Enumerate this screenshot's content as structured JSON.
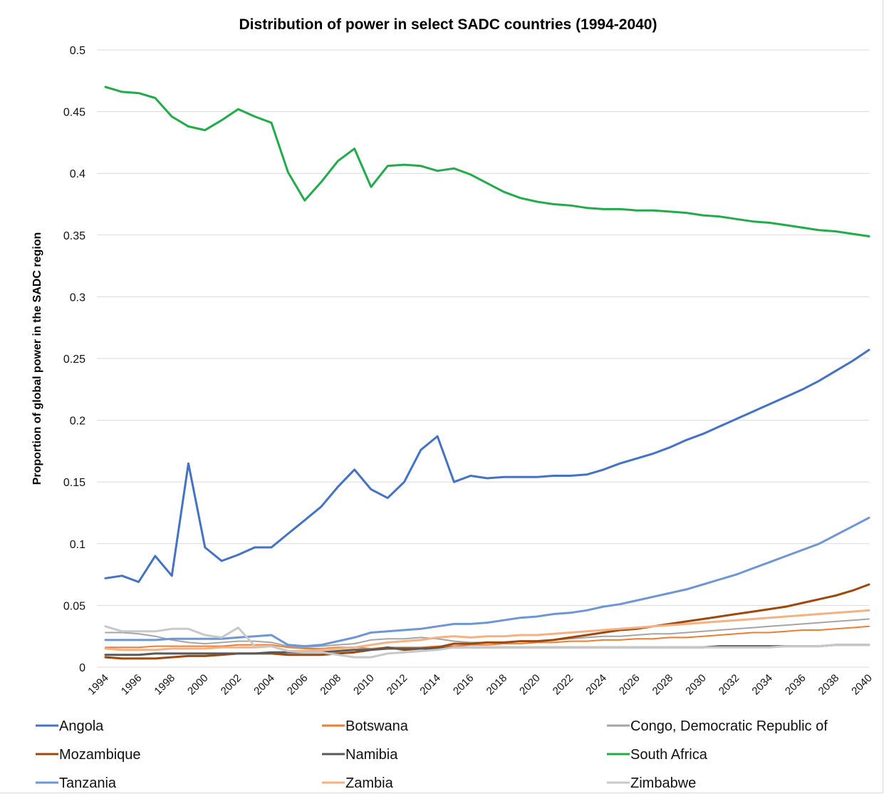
{
  "chart_data": {
    "type": "line",
    "title": "Distribution of power in select SADC countries (1994-2040)",
    "xlabel": "",
    "ylabel": "Proportion of global power in the SADC region",
    "ylim": [
      0,
      0.5
    ],
    "yticks": [
      "0",
      "0.05",
      "0.1",
      "0.15",
      "0.2",
      "0.25",
      "0.3",
      "0.35",
      "0.4",
      "0.45",
      "0.5"
    ],
    "xticks": [
      "1994",
      "1996",
      "1998",
      "2000",
      "2002",
      "2004",
      "2006",
      "2008",
      "2010",
      "2012",
      "2014",
      "2016",
      "2018",
      "2020",
      "2022",
      "2024",
      "2026",
      "2028",
      "2030",
      "2032",
      "2034",
      "2036",
      "2038",
      "2040"
    ],
    "grid": true,
    "legend_position": "bottom",
    "x": [
      1994,
      1995,
      1996,
      1997,
      1998,
      1999,
      2000,
      2001,
      2002,
      2003,
      2004,
      2005,
      2006,
      2007,
      2008,
      2009,
      2010,
      2011,
      2012,
      2013,
      2014,
      2015,
      2016,
      2017,
      2018,
      2019,
      2020,
      2021,
      2022,
      2023,
      2024,
      2025,
      2026,
      2027,
      2028,
      2029,
      2030,
      2031,
      2032,
      2033,
      2034,
      2035,
      2036,
      2037,
      2038,
      2039,
      2040
    ],
    "series": [
      {
        "name": "Angola",
        "color": "#4472c4",
        "width": 3,
        "values": [
          0.072,
          0.074,
          0.069,
          0.09,
          0.074,
          0.165,
          0.097,
          0.086,
          0.091,
          0.097,
          0.097,
          0.108,
          0.119,
          0.13,
          0.146,
          0.16,
          0.144,
          0.137,
          0.15,
          0.176,
          0.187,
          0.15,
          0.155,
          0.153,
          0.154,
          0.154,
          0.154,
          0.155,
          0.155,
          0.156,
          0.16,
          0.165,
          0.169,
          0.173,
          0.178,
          0.184,
          0.189,
          0.195,
          0.201,
          0.207,
          0.213,
          0.219,
          0.225,
          0.232,
          0.24,
          0.248,
          0.257
        ]
      },
      {
        "name": "Botswana",
        "color": "#ed7d31",
        "width": 2,
        "values": [
          0.016,
          0.016,
          0.016,
          0.017,
          0.017,
          0.017,
          0.017,
          0.017,
          0.018,
          0.018,
          0.018,
          0.016,
          0.015,
          0.015,
          0.016,
          0.016,
          0.015,
          0.016,
          0.016,
          0.016,
          0.017,
          0.017,
          0.018,
          0.018,
          0.019,
          0.019,
          0.02,
          0.02,
          0.021,
          0.021,
          0.022,
          0.022,
          0.023,
          0.023,
          0.024,
          0.024,
          0.025,
          0.026,
          0.027,
          0.028,
          0.028,
          0.029,
          0.03,
          0.03,
          0.031,
          0.032,
          0.033
        ]
      },
      {
        "name": "Congo, Democratic Republic of",
        "color": "#a5a5a5",
        "width": 2,
        "values": [
          0.028,
          0.028,
          0.027,
          0.025,
          0.022,
          0.02,
          0.019,
          0.02,
          0.021,
          0.021,
          0.02,
          0.017,
          0.016,
          0.017,
          0.018,
          0.019,
          0.022,
          0.023,
          0.023,
          0.024,
          0.023,
          0.021,
          0.02,
          0.02,
          0.02,
          0.021,
          0.021,
          0.022,
          0.023,
          0.024,
          0.025,
          0.025,
          0.026,
          0.027,
          0.027,
          0.028,
          0.029,
          0.03,
          0.031,
          0.032,
          0.033,
          0.034,
          0.035,
          0.036,
          0.037,
          0.038,
          0.039
        ]
      },
      {
        "name": "Mozambique",
        "color": "#9e480e",
        "width": 3,
        "values": [
          0.008,
          0.007,
          0.007,
          0.007,
          0.008,
          0.009,
          0.009,
          0.01,
          0.011,
          0.011,
          0.011,
          0.01,
          0.01,
          0.01,
          0.011,
          0.012,
          0.014,
          0.016,
          0.014,
          0.015,
          0.016,
          0.019,
          0.019,
          0.02,
          0.02,
          0.021,
          0.021,
          0.022,
          0.024,
          0.026,
          0.028,
          0.03,
          0.031,
          0.033,
          0.035,
          0.037,
          0.039,
          0.041,
          0.043,
          0.045,
          0.047,
          0.049,
          0.052,
          0.055,
          0.058,
          0.062,
          0.067
        ]
      },
      {
        "name": "Namibia",
        "color": "#595959",
        "width": 3,
        "values": [
          0.01,
          0.01,
          0.01,
          0.011,
          0.011,
          0.011,
          0.011,
          0.011,
          0.011,
          0.011,
          0.012,
          0.012,
          0.012,
          0.012,
          0.013,
          0.014,
          0.014,
          0.015,
          0.015,
          0.015,
          0.015,
          0.016,
          0.016,
          0.016,
          0.016,
          0.016,
          0.016,
          0.016,
          0.016,
          0.016,
          0.016,
          0.016,
          0.016,
          0.016,
          0.016,
          0.016,
          0.016,
          0.017,
          0.017,
          0.017,
          0.017,
          0.017,
          0.017,
          0.017,
          0.018,
          0.018,
          0.018
        ]
      },
      {
        "name": "South Africa",
        "color": "#22ab4a",
        "width": 3,
        "values": [
          0.47,
          0.466,
          0.465,
          0.461,
          0.446,
          0.438,
          0.435,
          0.443,
          0.452,
          0.446,
          0.441,
          0.401,
          0.378,
          0.393,
          0.41,
          0.42,
          0.389,
          0.406,
          0.407,
          0.406,
          0.402,
          0.404,
          0.399,
          0.392,
          0.385,
          0.38,
          0.377,
          0.375,
          0.374,
          0.372,
          0.371,
          0.371,
          0.37,
          0.37,
          0.369,
          0.368,
          0.366,
          0.365,
          0.363,
          0.361,
          0.36,
          0.358,
          0.356,
          0.354,
          0.353,
          0.351,
          0.349
        ]
      },
      {
        "name": "Tanzania",
        "color": "#6f96d4",
        "width": 3,
        "values": [
          0.022,
          0.022,
          0.022,
          0.022,
          0.023,
          0.023,
          0.023,
          0.023,
          0.024,
          0.025,
          0.026,
          0.018,
          0.017,
          0.018,
          0.021,
          0.024,
          0.028,
          0.029,
          0.03,
          0.031,
          0.033,
          0.035,
          0.035,
          0.036,
          0.038,
          0.04,
          0.041,
          0.043,
          0.044,
          0.046,
          0.049,
          0.051,
          0.054,
          0.057,
          0.06,
          0.063,
          0.067,
          0.071,
          0.075,
          0.08,
          0.085,
          0.09,
          0.095,
          0.1,
          0.107,
          0.114,
          0.121
        ]
      },
      {
        "name": "Zambia",
        "color": "#f4b183",
        "width": 3,
        "values": [
          0.015,
          0.014,
          0.014,
          0.014,
          0.015,
          0.015,
          0.015,
          0.016,
          0.016,
          0.016,
          0.017,
          0.013,
          0.013,
          0.014,
          0.015,
          0.016,
          0.018,
          0.02,
          0.021,
          0.022,
          0.024,
          0.025,
          0.024,
          0.025,
          0.025,
          0.026,
          0.026,
          0.027,
          0.028,
          0.029,
          0.03,
          0.031,
          0.032,
          0.033,
          0.034,
          0.035,
          0.036,
          0.037,
          0.038,
          0.039,
          0.04,
          0.041,
          0.042,
          0.043,
          0.044,
          0.045,
          0.046
        ]
      },
      {
        "name": "Zimbabwe",
        "color": "#c8c8c8",
        "width": 3,
        "values": [
          0.033,
          0.029,
          0.029,
          0.029,
          0.031,
          0.031,
          0.026,
          0.024,
          0.032,
          0.017,
          0.017,
          0.013,
          0.012,
          0.012,
          0.01,
          0.008,
          0.008,
          0.011,
          0.012,
          0.013,
          0.014,
          0.016,
          0.016,
          0.016,
          0.016,
          0.016,
          0.016,
          0.016,
          0.016,
          0.016,
          0.016,
          0.016,
          0.016,
          0.016,
          0.016,
          0.016,
          0.016,
          0.016,
          0.016,
          0.016,
          0.016,
          0.017,
          0.017,
          0.017,
          0.018,
          0.018,
          0.018
        ]
      }
    ]
  }
}
